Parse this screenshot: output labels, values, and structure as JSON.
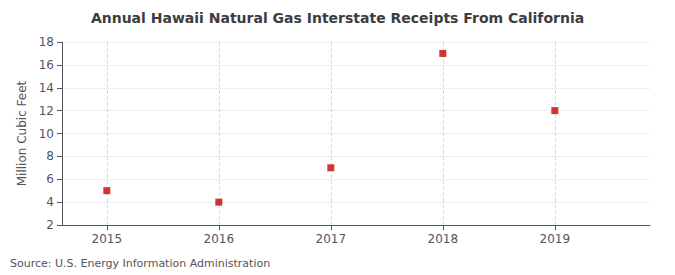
{
  "chart_data": {
    "type": "scatter",
    "title": "Annual Hawaii Natural Gas Interstate Receipts From California",
    "ylabel": "Million Cubic Feet",
    "annotations": [
      "Source: U.S. Energy Information Administration"
    ],
    "x": [
      2015,
      2016,
      2017,
      2018,
      2019
    ],
    "values": [
      5,
      4,
      7,
      17,
      12
    ],
    "color": "#cc0000",
    "marker": "square",
    "xlim": [
      2014.6,
      2019.85
    ],
    "xticks": [
      2015,
      2016,
      2017,
      2018,
      2019
    ],
    "ylim": [
      2,
      18
    ],
    "yticks": [
      2,
      4,
      6,
      8,
      10,
      12,
      14,
      16,
      18
    ],
    "grid": true
  }
}
